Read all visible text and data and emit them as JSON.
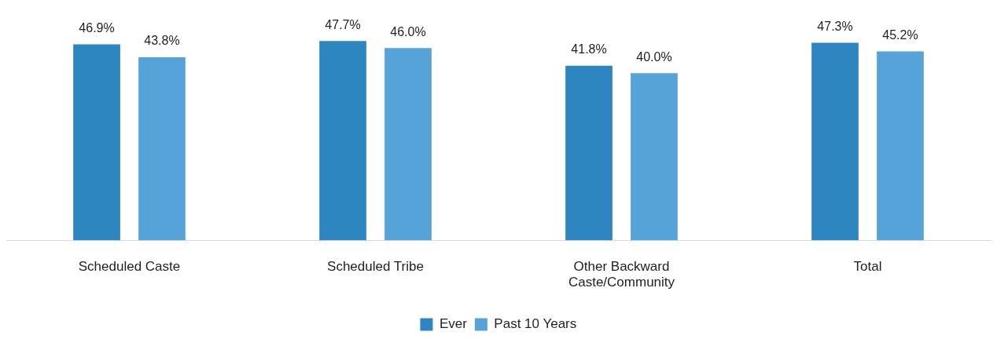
{
  "chart_data": {
    "type": "bar",
    "categories": [
      "Scheduled Caste",
      "Scheduled Tribe",
      "Other Backward Caste/Community",
      "Total"
    ],
    "series": [
      {
        "name": "Ever",
        "color": "#2e86c1",
        "values": [
          46.9,
          47.7,
          41.8,
          47.3
        ],
        "value_labels": [
          "46.9%",
          "47.7%",
          "41.8%",
          "47.3%"
        ]
      },
      {
        "name": "Past 10 Years",
        "color": "#56a3d9",
        "values": [
          43.8,
          46.0,
          40.0,
          45.2
        ],
        "value_labels": [
          "43.8%",
          "46.0%",
          "40.0%",
          "45.2%"
        ]
      }
    ],
    "grid": false,
    "legend": "bottom",
    "tick_labels": "x"
  }
}
